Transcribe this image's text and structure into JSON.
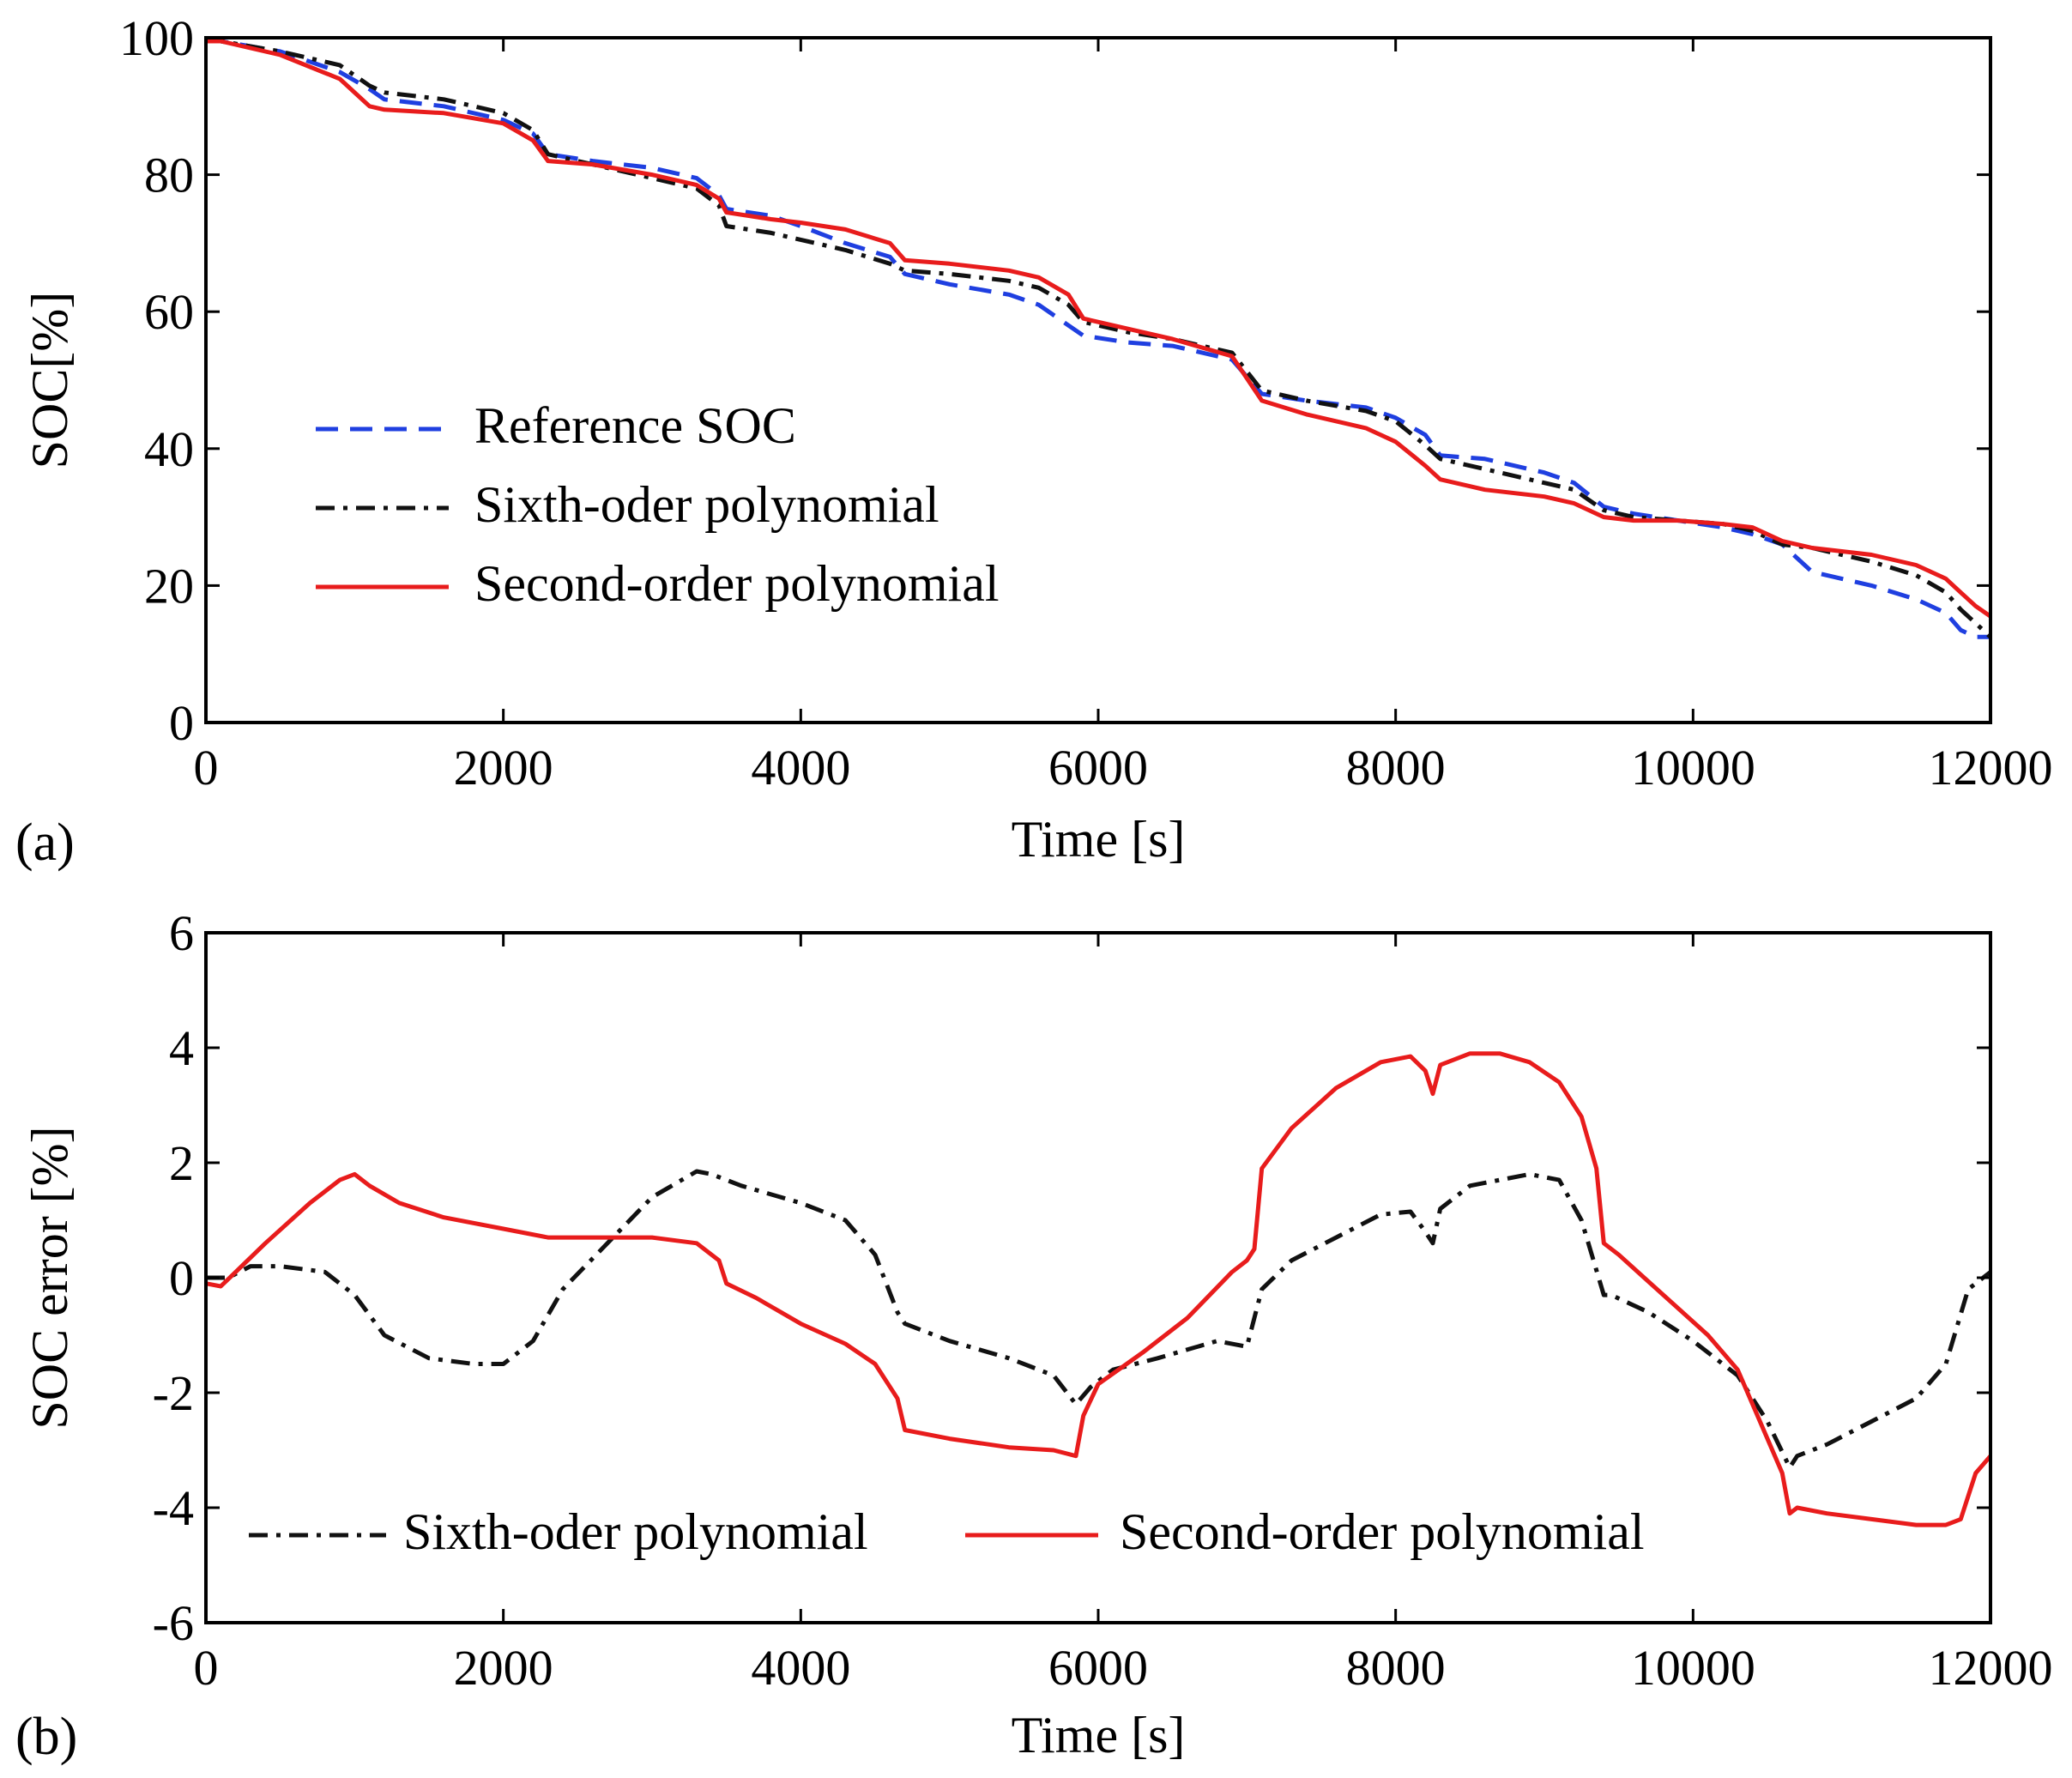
{
  "chart_data": [
    {
      "type": "line",
      "panel_label": "(a)",
      "xlabel": "Time [s]",
      "ylabel": "SOC[%]",
      "xlim": [
        0,
        12000
      ],
      "ylim": [
        0,
        100
      ],
      "xticks": [
        0,
        2000,
        4000,
        6000,
        8000,
        10000,
        12000
      ],
      "yticks": [
        0,
        20,
        40,
        60,
        80,
        100
      ],
      "grid": false,
      "legend_position": "left-middle",
      "series": [
        {
          "name": "Reference SOC",
          "color": "#1f3fe0",
          "style": "dashed",
          "x": [
            0,
            100,
            500,
            900,
            1100,
            1200,
            1600,
            2000,
            2200,
            2300,
            2600,
            3000,
            3300,
            3450,
            3500,
            3800,
            4000,
            4300,
            4600,
            4700,
            5000,
            5400,
            5600,
            5800,
            5900,
            6200,
            6500,
            6900,
            7100,
            7400,
            7800,
            8000,
            8200,
            8300,
            8600,
            9000,
            9200,
            9400,
            9600,
            9900,
            10200,
            10400,
            10600,
            10800,
            11200,
            11500,
            11700,
            11800,
            11900,
            12000
          ],
          "values": [
            99.5,
            99.5,
            98,
            95,
            92.5,
            91,
            90,
            88,
            86,
            83,
            82,
            81,
            79.5,
            77,
            75,
            74,
            72.5,
            70,
            68,
            65.5,
            64,
            62.5,
            61,
            58,
            56.5,
            55.5,
            55,
            53,
            48,
            47,
            46,
            44.5,
            42,
            39,
            38.5,
            36.5,
            35,
            31.5,
            30.5,
            29.5,
            28.5,
            27.5,
            26,
            22,
            20,
            18,
            16,
            13.5,
            12.5,
            12.5
          ]
        },
        {
          "name": "Sixth-oder polynomial",
          "color": "#111111",
          "style": "dashdot",
          "x": [
            0,
            100,
            500,
            900,
            1100,
            1200,
            1600,
            2000,
            2200,
            2300,
            2600,
            3000,
            3300,
            3450,
            3500,
            3800,
            4000,
            4300,
            4600,
            4700,
            5000,
            5400,
            5600,
            5800,
            5900,
            6200,
            6500,
            6900,
            7100,
            7400,
            7800,
            8000,
            8200,
            8300,
            8600,
            9000,
            9200,
            9400,
            9600,
            9900,
            10200,
            10400,
            10600,
            10800,
            11200,
            11500,
            11700,
            11800,
            11900,
            12000
          ],
          "values": [
            99.5,
            99.5,
            98,
            96,
            93,
            92,
            91,
            89,
            86.5,
            83,
            81.5,
            79.5,
            78,
            75.5,
            72.5,
            71.5,
            70.5,
            69,
            67,
            66,
            65.5,
            64.5,
            63.5,
            61,
            58.5,
            57,
            56,
            54,
            48.5,
            47,
            45.5,
            44,
            40.5,
            38.5,
            37,
            35,
            34,
            31,
            30,
            29.5,
            29,
            28,
            26,
            25.5,
            23.5,
            21.5,
            19,
            16.5,
            14.5,
            12.5
          ]
        },
        {
          "name": "Second-order polynomial",
          "color": "#e81c1c",
          "style": "solid",
          "x": [
            0,
            100,
            500,
            900,
            1100,
            1200,
            1600,
            2000,
            2200,
            2300,
            2600,
            3000,
            3300,
            3450,
            3500,
            3800,
            4000,
            4300,
            4600,
            4700,
            5000,
            5400,
            5600,
            5800,
            5900,
            6200,
            6500,
            6900,
            7100,
            7400,
            7800,
            8000,
            8200,
            8300,
            8600,
            9000,
            9200,
            9400,
            9600,
            9900,
            10200,
            10400,
            10600,
            10800,
            11200,
            11500,
            11700,
            11800,
            11900,
            12000
          ],
          "values": [
            99.5,
            99.5,
            97.5,
            94,
            90,
            89.5,
            89,
            87.5,
            85,
            82,
            81.5,
            80,
            78.5,
            76.5,
            74.5,
            73.5,
            73,
            72,
            70,
            67.5,
            67,
            66,
            65,
            62.5,
            59,
            57.5,
            56,
            53.5,
            47,
            45,
            43,
            41,
            37.5,
            35.5,
            34,
            33,
            32,
            30,
            29.5,
            29.5,
            29,
            28.5,
            26.5,
            25.5,
            24.5,
            23,
            21,
            19,
            17,
            15.5
          ]
        }
      ]
    },
    {
      "type": "line",
      "panel_label": "(b)",
      "xlabel": "Time [s]",
      "ylabel": "SOC error [%]",
      "xlim": [
        0,
        12000
      ],
      "ylim": [
        -6,
        6
      ],
      "xticks": [
        0,
        2000,
        4000,
        6000,
        8000,
        10000,
        12000
      ],
      "yticks": [
        -6,
        -4,
        -2,
        0,
        2,
        4,
        6
      ],
      "grid": false,
      "legend_position": "bottom",
      "series": [
        {
          "name": "Sixth-oder polynomial",
          "color": "#111111",
          "style": "dashdot",
          "x": [
            0,
            150,
            300,
            500,
            800,
            1000,
            1200,
            1500,
            1800,
            2000,
            2200,
            2400,
            2700,
            3000,
            3300,
            3400,
            3600,
            4000,
            4300,
            4500,
            4650,
            4700,
            5000,
            5400,
            5700,
            5850,
            5950,
            6100,
            6400,
            6800,
            7000,
            7050,
            7100,
            7300,
            7600,
            7900,
            8100,
            8200,
            8250,
            8300,
            8500,
            8700,
            8900,
            9100,
            9250,
            9400,
            9450,
            9700,
            10000,
            10300,
            10500,
            10650,
            10700,
            10900,
            11200,
            11500,
            11700,
            11850,
            12000
          ],
          "values": [
            0,
            0,
            0.2,
            0.2,
            0.1,
            -0.3,
            -1.0,
            -1.4,
            -1.5,
            -1.5,
            -1.1,
            -0.2,
            0.6,
            1.4,
            1.85,
            1.8,
            1.6,
            1.3,
            1.0,
            0.4,
            -0.6,
            -0.8,
            -1.1,
            -1.4,
            -1.7,
            -2.2,
            -1.9,
            -1.6,
            -1.4,
            -1.1,
            -1.2,
            -0.7,
            -0.2,
            0.3,
            0.7,
            1.1,
            1.15,
            0.8,
            0.6,
            1.2,
            1.6,
            1.7,
            1.8,
            1.7,
            1.0,
            -0.3,
            -0.3,
            -0.6,
            -1.1,
            -1.7,
            -2.5,
            -3.3,
            -3.1,
            -2.9,
            -2.5,
            -2.1,
            -1.5,
            -0.2,
            0.1
          ]
        },
        {
          "name": "Second-order polynomial",
          "color": "#e81c1c",
          "style": "solid",
          "x": [
            0,
            100,
            200,
            400,
            700,
            900,
            1000,
            1100,
            1300,
            1600,
            2000,
            2300,
            2600,
            3000,
            3300,
            3450,
            3500,
            3700,
            4000,
            4300,
            4500,
            4650,
            4700,
            5000,
            5400,
            5700,
            5850,
            5900,
            6000,
            6300,
            6600,
            6900,
            7000,
            7050,
            7100,
            7300,
            7600,
            7900,
            8100,
            8200,
            8250,
            8300,
            8500,
            8700,
            8900,
            9100,
            9250,
            9350,
            9400,
            9500,
            9800,
            10100,
            10300,
            10500,
            10600,
            10650,
            10700,
            10900,
            11200,
            11500,
            11700,
            11800,
            11900,
            12000
          ],
          "values": [
            -0.1,
            -0.15,
            0.1,
            0.6,
            1.3,
            1.7,
            1.8,
            1.6,
            1.3,
            1.05,
            0.85,
            0.7,
            0.7,
            0.7,
            0.6,
            0.3,
            -0.1,
            -0.35,
            -0.8,
            -1.15,
            -1.5,
            -2.1,
            -2.65,
            -2.8,
            -2.95,
            -3.0,
            -3.1,
            -2.4,
            -1.85,
            -1.3,
            -0.7,
            0.1,
            0.3,
            0.5,
            1.9,
            2.6,
            3.3,
            3.75,
            3.85,
            3.6,
            3.2,
            3.7,
            3.9,
            3.9,
            3.75,
            3.4,
            2.8,
            1.9,
            0.6,
            0.4,
            -0.3,
            -1.0,
            -1.6,
            -2.8,
            -3.4,
            -4.1,
            -4.0,
            -4.1,
            -4.2,
            -4.3,
            -4.3,
            -4.2,
            -3.4,
            -3.1
          ]
        }
      ]
    }
  ]
}
